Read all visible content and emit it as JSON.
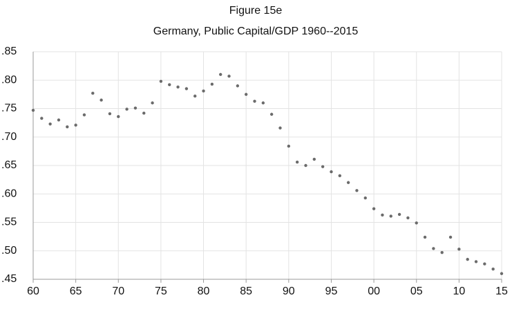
{
  "chart_data": {
    "type": "scatter",
    "title": "Figure 15e",
    "subtitle": "Germany, Public Capital/GDP  1960--2015",
    "x": [
      1960,
      1961,
      1962,
      1963,
      1964,
      1965,
      1966,
      1967,
      1968,
      1969,
      1970,
      1971,
      1972,
      1973,
      1974,
      1975,
      1976,
      1977,
      1978,
      1979,
      1980,
      1981,
      1982,
      1983,
      1984,
      1985,
      1986,
      1987,
      1988,
      1989,
      1990,
      1991,
      1992,
      1993,
      1994,
      1995,
      1996,
      1997,
      1998,
      1999,
      2000,
      2001,
      2002,
      2003,
      2004,
      2005,
      2006,
      2007,
      2008,
      2009,
      2010,
      2011,
      2012,
      2013,
      2014,
      2015
    ],
    "values": [
      0.747,
      0.733,
      0.723,
      0.73,
      0.718,
      0.721,
      0.739,
      0.777,
      0.765,
      0.741,
      0.736,
      0.749,
      0.751,
      0.742,
      0.76,
      0.798,
      0.792,
      0.788,
      0.785,
      0.772,
      0.781,
      0.793,
      0.81,
      0.807,
      0.79,
      0.775,
      0.763,
      0.76,
      0.74,
      0.716,
      0.684,
      0.656,
      0.65,
      0.661,
      0.648,
      0.639,
      0.632,
      0.62,
      0.606,
      0.593,
      0.574,
      0.563,
      0.561,
      0.564,
      0.558,
      0.549,
      0.524,
      0.504,
      0.497,
      0.524,
      0.503,
      0.485,
      0.481,
      0.477,
      0.468,
      0.46
    ],
    "color": "#6b6b6b",
    "xlim": [
      1960,
      2015
    ],
    "xticks": [
      {
        "value": 1960,
        "label": "60"
      },
      {
        "value": 1965,
        "label": "65"
      },
      {
        "value": 1970,
        "label": "70"
      },
      {
        "value": 1975,
        "label": "75"
      },
      {
        "value": 1980,
        "label": "80"
      },
      {
        "value": 1985,
        "label": "85"
      },
      {
        "value": 1990,
        "label": "90"
      },
      {
        "value": 1995,
        "label": "95"
      },
      {
        "value": 2000,
        "label": "00"
      },
      {
        "value": 2005,
        "label": "05"
      },
      {
        "value": 2010,
        "label": "10"
      },
      {
        "value": 2015,
        "label": "15"
      }
    ],
    "ylim": [
      0.45,
      0.85
    ],
    "yticks": [
      {
        "value": 0.45,
        "label": ".45"
      },
      {
        "value": 0.5,
        "label": ".50"
      },
      {
        "value": 0.55,
        "label": ".55"
      },
      {
        "value": 0.6,
        "label": ".60"
      },
      {
        "value": 0.65,
        "label": ".65"
      },
      {
        "value": 0.7,
        "label": ".70"
      },
      {
        "value": 0.75,
        "label": ".75"
      },
      {
        "value": 0.8,
        "label": ".80"
      },
      {
        "value": 0.85,
        "label": ".85"
      }
    ],
    "grid": true
  }
}
